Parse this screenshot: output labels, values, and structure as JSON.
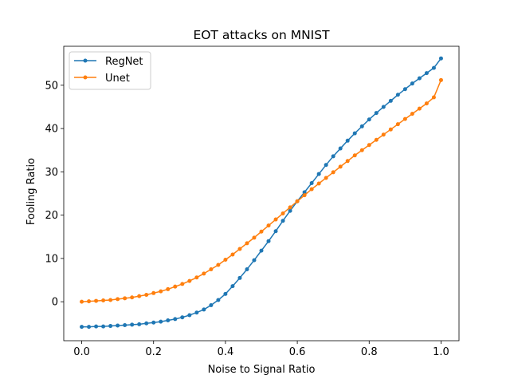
{
  "chart_data": {
    "type": "line",
    "title": "EOT attacks on MNIST",
    "xlabel": "Noise to Signal Ratio",
    "ylabel": "Fooling Ratio",
    "xlim": [
      -0.05,
      1.05
    ],
    "ylim": [
      -9,
      59
    ],
    "xticks": [
      0.0,
      0.2,
      0.4,
      0.6,
      0.8,
      1.0
    ],
    "xtick_labels": [
      "0.0",
      "0.2",
      "0.4",
      "0.6",
      "0.8",
      "1.0"
    ],
    "yticks": [
      0,
      10,
      20,
      30,
      40,
      50
    ],
    "ytick_labels": [
      "0",
      "10",
      "20",
      "30",
      "40",
      "50"
    ],
    "grid": false,
    "legend_position": "top-left",
    "x": [
      0.0,
      0.02,
      0.04,
      0.06,
      0.08,
      0.1,
      0.12,
      0.14,
      0.16,
      0.18,
      0.2,
      0.22,
      0.24,
      0.26,
      0.28,
      0.3,
      0.32,
      0.34,
      0.36,
      0.38,
      0.4,
      0.42,
      0.44,
      0.46,
      0.48,
      0.5,
      0.52,
      0.54,
      0.56,
      0.58,
      0.6,
      0.62,
      0.64,
      0.66,
      0.68,
      0.7,
      0.72,
      0.74,
      0.76,
      0.78,
      0.8,
      0.82,
      0.84,
      0.86,
      0.88,
      0.9,
      0.92,
      0.94,
      0.96,
      0.98,
      1.0
    ],
    "series": [
      {
        "name": "RegNet",
        "color": "#1f77b4",
        "values": [
          -5.8,
          -5.8,
          -5.7,
          -5.7,
          -5.6,
          -5.5,
          -5.4,
          -5.3,
          -5.2,
          -5.0,
          -4.8,
          -4.6,
          -4.3,
          -4.0,
          -3.6,
          -3.1,
          -2.5,
          -1.8,
          -0.8,
          0.4,
          1.8,
          3.6,
          5.5,
          7.5,
          9.6,
          11.8,
          14.0,
          16.3,
          18.7,
          21.0,
          23.2,
          25.3,
          27.4,
          29.5,
          31.6,
          33.6,
          35.4,
          37.2,
          38.9,
          40.5,
          42.1,
          43.6,
          45.0,
          46.4,
          47.8,
          49.1,
          50.4,
          51.6,
          52.8,
          54.0,
          56.2
        ]
      },
      {
        "name": "Unet",
        "color": "#ff7f0e",
        "values": [
          0.0,
          0.1,
          0.2,
          0.3,
          0.4,
          0.6,
          0.8,
          1.0,
          1.3,
          1.6,
          2.0,
          2.4,
          2.9,
          3.5,
          4.1,
          4.8,
          5.6,
          6.5,
          7.5,
          8.5,
          9.7,
          10.9,
          12.2,
          13.5,
          14.8,
          16.2,
          17.6,
          19.0,
          20.4,
          21.8,
          23.2,
          24.6,
          26.0,
          27.3,
          28.6,
          29.9,
          31.2,
          32.5,
          33.8,
          35.0,
          36.2,
          37.4,
          38.6,
          39.8,
          41.0,
          42.2,
          43.4,
          44.6,
          45.8,
          47.2,
          51.2
        ]
      }
    ]
  }
}
